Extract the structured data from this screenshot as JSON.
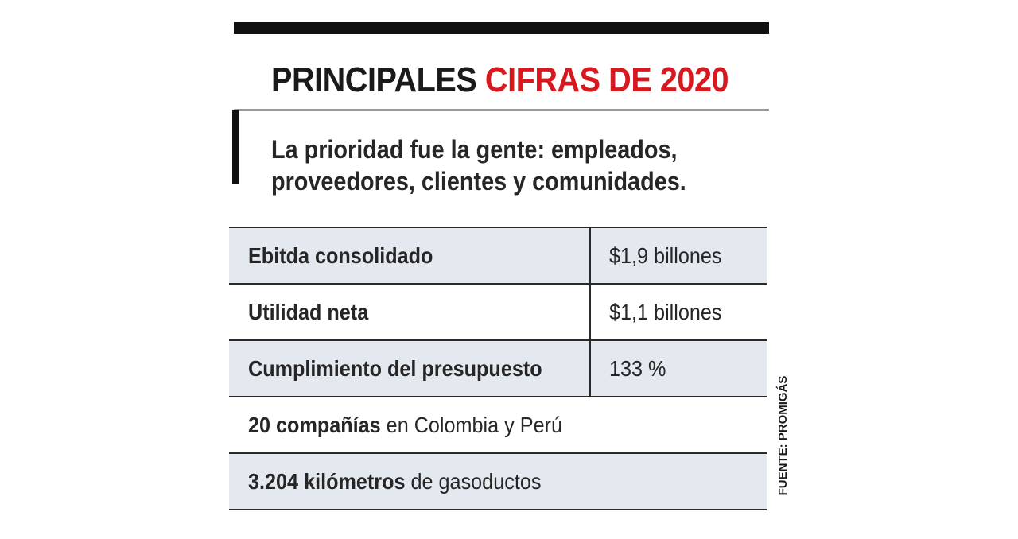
{
  "title": {
    "prefix": "PRINCIPALES",
    "accent": "CIFRAS DE 2020"
  },
  "subtitle": {
    "line1": "La prioridad fue la gente: empleados,",
    "line2": "proveedores, clientes y comunidades."
  },
  "metrics": [
    {
      "label": "Ebitda consolidado",
      "value": "$1,9 billones"
    },
    {
      "label": "Utilidad neta",
      "value": "$1,1 billones"
    },
    {
      "label": "Cumplimiento del presupuesto",
      "value": "133 %"
    }
  ],
  "facts": [
    {
      "bold": "20 compañías",
      "rest": " en Colombia y Perú"
    },
    {
      "bold": "3.204 kilómetros",
      "rest": " de gasoductos"
    }
  ],
  "source": "FUENTE: PROMIGÁS",
  "colors": {
    "accent": "#d7191f",
    "row_shade": "#e4e8ef",
    "rule": "#111111"
  }
}
